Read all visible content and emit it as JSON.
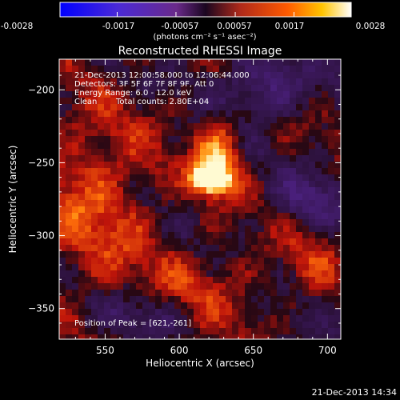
{
  "colorbar": {
    "ticks": [
      "-0.0028",
      "-0.0017",
      "-0.00057",
      "0.00057",
      "0.0017",
      "0.0028"
    ],
    "unit_label": "(photons cm⁻² s⁻¹ asec⁻²)",
    "tick_values": [
      -0.0028,
      -0.0017,
      -0.00057,
      0.00057,
      0.0017,
      0.0028
    ],
    "range": [
      -0.0028,
      0.0028
    ],
    "colors": [
      "#0000ff",
      "#ffffff",
      "#000000",
      "#ff0000",
      "#ffff00",
      "#ffffff"
    ]
  },
  "title": "Reconstructed RHESSI Image",
  "info": {
    "time_range": "21-Dec-2013 12:00:58.000 to 12:06:44.000",
    "detectors": "Detectors: 3F 5F 6F 7F 8F 9F, Att 0",
    "energy": "Energy Range: 6.0 - 12.0 keV",
    "clean_label": "Clean",
    "total_counts": "Total counts: 2.80E+04",
    "peak": "Position of Peak = [621,-261]"
  },
  "axes": {
    "xlabel": "Heliocentric X (arcsec)",
    "ylabel": "Heliocentric Y (arcsec)",
    "xticks": [
      550,
      600,
      650,
      700
    ],
    "yticks": [
      -200,
      -250,
      -300,
      -350
    ],
    "xlim": [
      519,
      709
    ],
    "ylim": [
      -371,
      -179
    ]
  },
  "image_data": {
    "peak_x": 621,
    "peak_y": -261
  },
  "footer_date": "21-Dec-2013 14:34"
}
